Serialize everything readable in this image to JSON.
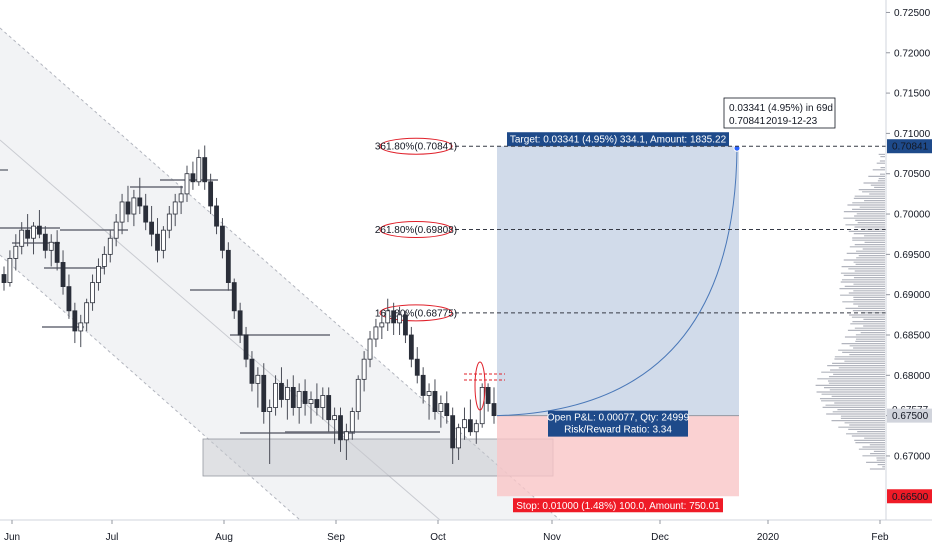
{
  "chart_data": {
    "type": "candlestick",
    "xaxis": {
      "labels": [
        "Jun",
        "Jul",
        "Aug",
        "Sep",
        "Oct",
        "Nov",
        "Dec",
        "2020",
        "Feb"
      ]
    },
    "yaxis": {
      "range": [
        0.6628,
        0.7258
      ],
      "ticks": [
        "0.72500",
        "0.72000",
        "0.71500",
        "0.71000",
        "0.70500",
        "0.70000",
        "0.69500",
        "0.69000",
        "0.68500",
        "0.68000",
        "0.67500",
        "0.67000"
      ],
      "tick_values": [
        0.725,
        0.72,
        0.715,
        0.71,
        0.705,
        0.7,
        0.695,
        0.69,
        0.685,
        0.68,
        0.675,
        0.67
      ],
      "badges": [
        {
          "value": 0.70841,
          "label": "0.70841",
          "style": "dark"
        },
        {
          "value": 0.67577,
          "label": "0.67577",
          "style": "light"
        },
        {
          "value": 0.675,
          "label": "0.67500",
          "style": "grey"
        },
        {
          "value": 0.665,
          "label": "0.66500",
          "style": "red"
        }
      ]
    },
    "fib_levels": [
      {
        "label": "361.80%(0.70841)",
        "value": 0.70841
      },
      {
        "label": "261.80%(0.69808)",
        "value": 0.69808
      },
      {
        "label": "161.80%(0.68775)",
        "value": 0.68775
      }
    ],
    "position": {
      "entry": 0.675,
      "target": 0.70841,
      "stop": 0.665,
      "target_label": "Target: 0.03341 (4.95%) 334.1, Amount: 1835.22",
      "stop_label": "Stop: 0.01000 (1.48%) 100.0, Amount: 750.01",
      "pnl_label": "Open P&L: 0.00077, Qty: 24999",
      "rr_label": "Risk/Reward Ratio: 3.34"
    },
    "tooltip": {
      "line1": "0.03341 (4.95%) in 69d",
      "price": "0.70841",
      "date": "2019-12-23"
    },
    "candles": [
      [
        0.6925,
        0.6935,
        0.6905,
        0.6915
      ],
      [
        0.6915,
        0.6955,
        0.691,
        0.6945
      ],
      [
        0.6945,
        0.6975,
        0.693,
        0.696
      ],
      [
        0.696,
        0.699,
        0.695,
        0.698
      ],
      [
        0.698,
        0.7,
        0.696,
        0.697
      ],
      [
        0.697,
        0.699,
        0.695,
        0.6985
      ],
      [
        0.6985,
        0.7005,
        0.697,
        0.6975
      ],
      [
        0.6975,
        0.6985,
        0.6945,
        0.6955
      ],
      [
        0.6955,
        0.6975,
        0.6935,
        0.6965
      ],
      [
        0.6965,
        0.698,
        0.693,
        0.694
      ],
      [
        0.694,
        0.6955,
        0.69,
        0.691
      ],
      [
        0.691,
        0.6925,
        0.687,
        0.688
      ],
      [
        0.688,
        0.689,
        0.684,
        0.6855
      ],
      [
        0.6855,
        0.6875,
        0.6835,
        0.6865
      ],
      [
        0.6865,
        0.6895,
        0.6855,
        0.689
      ],
      [
        0.689,
        0.6925,
        0.688,
        0.6915
      ],
      [
        0.6915,
        0.6945,
        0.6905,
        0.6935
      ],
      [
        0.6935,
        0.696,
        0.6925,
        0.695
      ],
      [
        0.695,
        0.698,
        0.694,
        0.697
      ],
      [
        0.697,
        0.7,
        0.696,
        0.699
      ],
      [
        0.699,
        0.7025,
        0.6975,
        0.7015
      ],
      [
        0.7015,
        0.7035,
        0.699,
        0.7
      ],
      [
        0.7,
        0.703,
        0.6985,
        0.702
      ],
      [
        0.702,
        0.7045,
        0.7,
        0.701
      ],
      [
        0.701,
        0.7025,
        0.698,
        0.699
      ],
      [
        0.699,
        0.701,
        0.696,
        0.6975
      ],
      [
        0.6975,
        0.6995,
        0.694,
        0.6955
      ],
      [
        0.6955,
        0.6985,
        0.6945,
        0.698
      ],
      [
        0.698,
        0.701,
        0.697,
        0.7
      ],
      [
        0.7,
        0.7025,
        0.6985,
        0.7015
      ],
      [
        0.7015,
        0.7035,
        0.7,
        0.7025
      ],
      [
        0.7025,
        0.706,
        0.7015,
        0.705
      ],
      [
        0.705,
        0.7065,
        0.703,
        0.704
      ],
      [
        0.704,
        0.708,
        0.7035,
        0.707
      ],
      [
        0.707,
        0.7085,
        0.703,
        0.704
      ],
      [
        0.704,
        0.705,
        0.7,
        0.701
      ],
      [
        0.701,
        0.702,
        0.6975,
        0.6985
      ],
      [
        0.6985,
        0.6995,
        0.6945,
        0.6955
      ],
      [
        0.6955,
        0.6965,
        0.6905,
        0.6915
      ],
      [
        0.6915,
        0.692,
        0.687,
        0.688
      ],
      [
        0.688,
        0.689,
        0.684,
        0.685
      ],
      [
        0.685,
        0.686,
        0.681,
        0.682
      ],
      [
        0.682,
        0.683,
        0.678,
        0.679
      ],
      [
        0.679,
        0.681,
        0.676,
        0.68
      ],
      [
        0.68,
        0.6815,
        0.674,
        0.6755
      ],
      [
        0.6755,
        0.677,
        0.669,
        0.676
      ],
      [
        0.676,
        0.68,
        0.675,
        0.679
      ],
      [
        0.679,
        0.681,
        0.676,
        0.677
      ],
      [
        0.677,
        0.6795,
        0.6745,
        0.6785
      ],
      [
        0.6785,
        0.68,
        0.675,
        0.676
      ],
      [
        0.676,
        0.679,
        0.674,
        0.678
      ],
      [
        0.678,
        0.6795,
        0.675,
        0.6765
      ],
      [
        0.6765,
        0.678,
        0.674,
        0.677
      ],
      [
        0.677,
        0.679,
        0.675,
        0.676
      ],
      [
        0.676,
        0.6785,
        0.6745,
        0.6775
      ],
      [
        0.6775,
        0.6785,
        0.673,
        0.6745
      ],
      [
        0.6745,
        0.676,
        0.6715,
        0.675
      ],
      [
        0.675,
        0.676,
        0.6705,
        0.672
      ],
      [
        0.672,
        0.674,
        0.6695,
        0.673
      ],
      [
        0.673,
        0.676,
        0.672,
        0.6755
      ],
      [
        0.6755,
        0.68,
        0.6745,
        0.6795
      ],
      [
        0.6795,
        0.683,
        0.678,
        0.682
      ],
      [
        0.682,
        0.6855,
        0.681,
        0.6845
      ],
      [
        0.6845,
        0.687,
        0.6835,
        0.686
      ],
      [
        0.686,
        0.688,
        0.6845,
        0.6865
      ],
      [
        0.6865,
        0.6895,
        0.6855,
        0.688
      ],
      [
        0.688,
        0.689,
        0.685,
        0.6865
      ],
      [
        0.6865,
        0.6885,
        0.685,
        0.6875
      ],
      [
        0.6875,
        0.688,
        0.684,
        0.685
      ],
      [
        0.685,
        0.686,
        0.681,
        0.682
      ],
      [
        0.682,
        0.6835,
        0.679,
        0.68
      ],
      [
        0.68,
        0.681,
        0.6765,
        0.6775
      ],
      [
        0.6775,
        0.679,
        0.6745,
        0.678
      ],
      [
        0.678,
        0.6795,
        0.6745,
        0.6755
      ],
      [
        0.6755,
        0.6775,
        0.6735,
        0.6765
      ],
      [
        0.6765,
        0.678,
        0.674,
        0.675
      ],
      [
        0.675,
        0.676,
        0.669,
        0.671
      ],
      [
        0.671,
        0.674,
        0.6695,
        0.6735
      ],
      [
        0.6735,
        0.676,
        0.672,
        0.6745
      ],
      [
        0.6745,
        0.677,
        0.6725,
        0.673
      ],
      [
        0.673,
        0.6745,
        0.6715,
        0.674
      ],
      [
        0.674,
        0.679,
        0.6735,
        0.6785
      ],
      [
        0.6785,
        0.679,
        0.6755,
        0.6765
      ],
      [
        0.6765,
        0.6785,
        0.674,
        0.675
      ]
    ]
  }
}
